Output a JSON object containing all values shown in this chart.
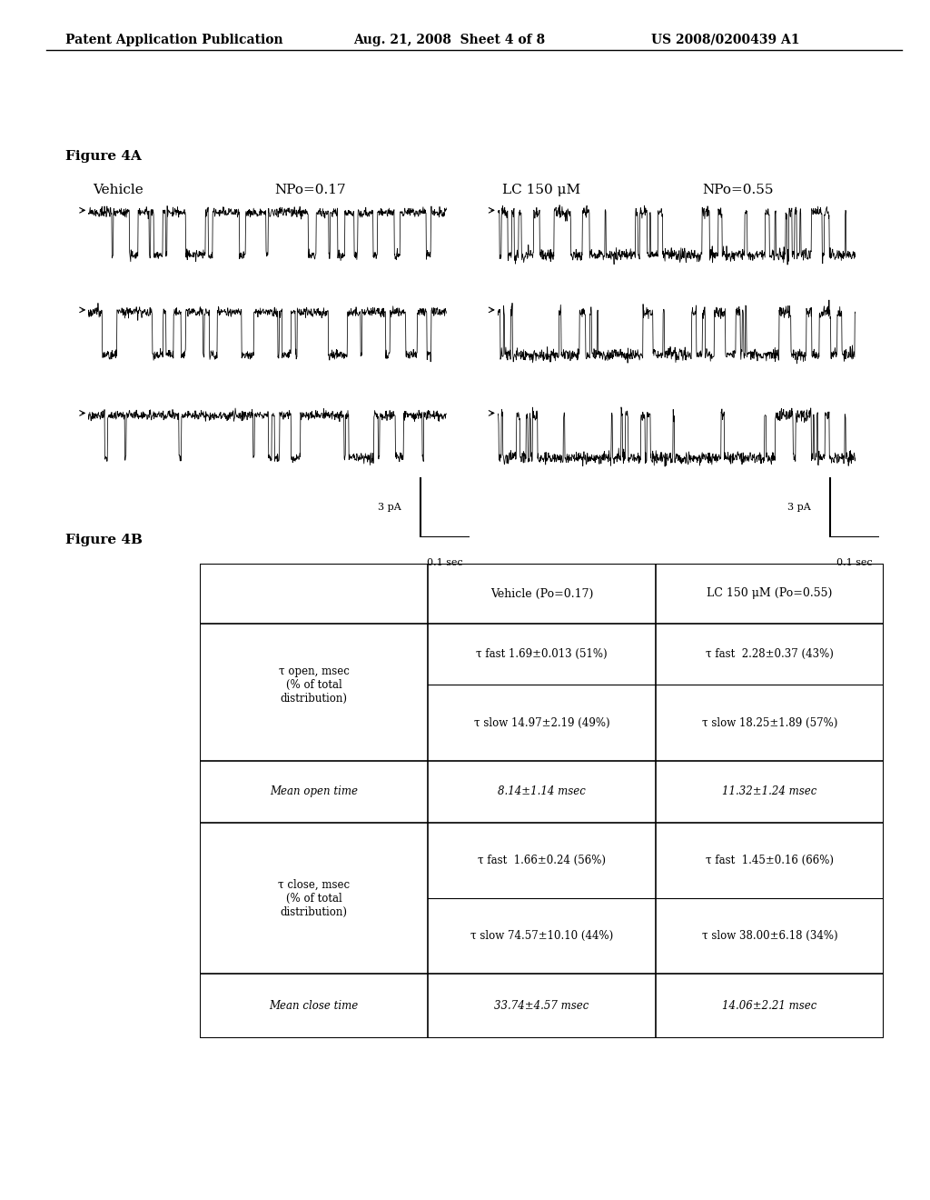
{
  "header_left": "Patent Application Publication",
  "header_mid": "Aug. 21, 2008  Sheet 4 of 8",
  "header_right": "US 2008/0200439 A1",
  "fig4a_label": "Figure 4A",
  "fig4b_label": "Figure 4B",
  "vehicle_label": "Vehicle",
  "npo_vehicle": "NPo=0.17",
  "lc_label": "LC 150 μM",
  "npo_lc": "NPo=0.55",
  "scale_pa": "3 pA",
  "scale_sec": "0.1 sec",
  "table_col2": "Vehicle (Po=0.17)",
  "table_col3": "LC 150 μM (Po=0.55)",
  "row1_header": "τ open, msec\n(% of total\ndistribution)",
  "row1_v1": "τ fast 1.69±0.013 (51%)",
  "row1_lc1": "τ fast  2.28±0.37 (43%)",
  "row1_v2": "τ slow 14.97±2.19 (49%)",
  "row1_lc2": "τ slow 18.25±1.89 (57%)",
  "row2_header": "Mean open time",
  "row2_v": "8.14±1.14 msec",
  "row2_lc": "11.32±1.24 msec",
  "row3_header": "τ close, msec\n(% of total\ndistribution)",
  "row3_v1": "τ fast  1.66±0.24 (56%)",
  "row3_lc1": "τ fast  1.45±0.16 (66%)",
  "row3_v2": "τ slow 74.57±10.10 (44%)",
  "row3_lc2": "τ slow 38.00±6.18 (34%)",
  "row4_header": "Mean close time",
  "row4_v": "33.74±4.57 msec",
  "row4_lc": "14.06±2.21 msec",
  "bg_color": "#ffffff",
  "text_color": "#000000",
  "seed": 42
}
